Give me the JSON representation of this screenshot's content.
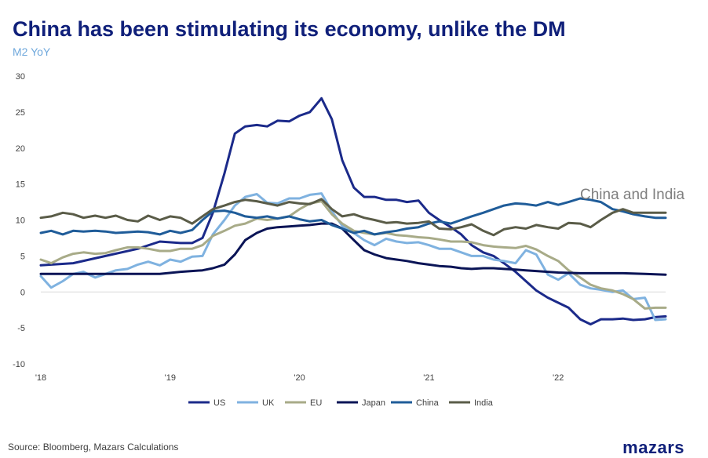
{
  "header": {
    "title": "China has been stimulating its economy, unlike the DM",
    "subtitle": "M2 YoY",
    "annotation": "China and India"
  },
  "footer": {
    "source": "Source: Bloomberg, Mazars Calculations",
    "logo": "mazars"
  },
  "chart_data": {
    "type": "line",
    "title": "China has been stimulating its economy, unlike the DM",
    "subtitle": "M2 YoY",
    "ylabel": "",
    "xlabel": "",
    "ylim": [
      -10,
      30
    ],
    "yticks": [
      30,
      25,
      20,
      15,
      10,
      5,
      0,
      -5,
      -10
    ],
    "xlim": [
      2018.0,
      2022.83
    ],
    "xticks": [
      {
        "value": 2018,
        "label": "'18"
      },
      {
        "value": 2019,
        "label": "'19"
      },
      {
        "value": 2020,
        "label": "'20"
      },
      {
        "value": 2021,
        "label": "'21"
      },
      {
        "value": 2022,
        "label": "'22"
      }
    ],
    "legend_position": "bottom",
    "annotations": [
      "China and India"
    ],
    "series": [
      {
        "name": "US",
        "color": "#1b2a8a",
        "x": [
          2018.0,
          2018.25,
          2018.5,
          2018.75,
          2018.92,
          2019.08,
          2019.17,
          2019.25,
          2019.33,
          2019.42,
          2019.5,
          2019.58,
          2019.67,
          2019.75,
          2019.83,
          2019.92,
          2020.0,
          2020.08,
          2020.17,
          2020.25,
          2020.33,
          2020.42,
          2020.5,
          2020.58,
          2020.67,
          2020.75,
          2020.83,
          2020.92,
          2021.0,
          2021.08,
          2021.17,
          2021.25,
          2021.33,
          2021.42,
          2021.5,
          2021.58,
          2021.67,
          2021.75,
          2021.83,
          2021.92,
          2022.0,
          2022.08,
          2022.17,
          2022.25,
          2022.33,
          2022.42,
          2022.5,
          2022.58,
          2022.67,
          2022.75,
          2022.83
        ],
        "y": [
          3.7,
          4.0,
          5.0,
          6.0,
          7.0,
          6.8,
          6.8,
          7.5,
          11.0,
          16.5,
          22.0,
          23.0,
          23.2,
          23.0,
          23.8,
          23.7,
          24.5,
          25.0,
          26.9,
          24.0,
          18.3,
          14.5,
          13.2,
          13.2,
          12.8,
          12.8,
          12.5,
          12.7,
          11.0,
          10.0,
          9.0,
          8.0,
          6.5,
          5.5,
          5.0,
          4.0,
          2.8,
          1.5,
          0.2,
          -0.8,
          -1.5,
          -2.2,
          -3.8,
          -4.5,
          -3.8,
          -3.8,
          -3.7,
          -3.9,
          -3.8,
          -3.5,
          -3.4
        ]
      },
      {
        "name": "UK",
        "color": "#7fb2e0",
        "x": [
          2018.0,
          2018.08,
          2018.17,
          2018.25,
          2018.33,
          2018.42,
          2018.5,
          2018.58,
          2018.67,
          2018.75,
          2018.83,
          2018.92,
          2019.0,
          2019.08,
          2019.17,
          2019.25,
          2019.33,
          2019.42,
          2019.5,
          2019.58,
          2019.67,
          2019.75,
          2019.83,
          2019.92,
          2020.0,
          2020.08,
          2020.17,
          2020.25,
          2020.33,
          2020.42,
          2020.5,
          2020.58,
          2020.67,
          2020.75,
          2020.83,
          2020.92,
          2021.0,
          2021.08,
          2021.17,
          2021.25,
          2021.33,
          2021.42,
          2021.5,
          2021.58,
          2021.67,
          2021.75,
          2021.83,
          2021.92,
          2022.0,
          2022.08,
          2022.17,
          2022.25,
          2022.33,
          2022.42,
          2022.5,
          2022.58,
          2022.67,
          2022.75,
          2022.83
        ],
        "y": [
          2.2,
          0.6,
          1.5,
          2.5,
          2.8,
          2.0,
          2.5,
          3.0,
          3.2,
          3.8,
          4.2,
          3.7,
          4.5,
          4.2,
          4.9,
          5.0,
          8.0,
          10.0,
          12.0,
          13.2,
          13.6,
          12.4,
          12.3,
          13.0,
          13.0,
          13.5,
          13.7,
          11.2,
          9.2,
          8.2,
          7.2,
          6.5,
          7.4,
          7.0,
          6.8,
          6.9,
          6.5,
          6.0,
          6.0,
          5.5,
          5.0,
          5.0,
          4.5,
          4.3,
          4.0,
          5.8,
          5.2,
          2.4,
          1.7,
          2.6,
          1.0,
          0.5,
          0.3,
          0.0,
          0.2,
          -1.0,
          -0.8,
          -3.9,
          -3.8
        ]
      },
      {
        "name": "EU",
        "color": "#a8ab88",
        "x": [
          2018.0,
          2018.08,
          2018.17,
          2018.25,
          2018.33,
          2018.42,
          2018.5,
          2018.58,
          2018.67,
          2018.75,
          2018.83,
          2018.92,
          2019.0,
          2019.08,
          2019.17,
          2019.25,
          2019.33,
          2019.42,
          2019.5,
          2019.58,
          2019.67,
          2019.75,
          2019.83,
          2019.92,
          2020.0,
          2020.08,
          2020.17,
          2020.25,
          2020.33,
          2020.42,
          2020.5,
          2020.58,
          2020.67,
          2020.75,
          2020.83,
          2020.92,
          2021.0,
          2021.08,
          2021.17,
          2021.25,
          2021.33,
          2021.42,
          2021.5,
          2021.58,
          2021.67,
          2021.75,
          2021.83,
          2021.92,
          2022.0,
          2022.08,
          2022.17,
          2022.25,
          2022.33,
          2022.42,
          2022.5,
          2022.58,
          2022.67,
          2022.75,
          2022.83
        ],
        "y": [
          4.5,
          4.0,
          4.8,
          5.3,
          5.5,
          5.3,
          5.4,
          5.8,
          6.2,
          6.2,
          6.0,
          5.7,
          5.7,
          6.0,
          6.0,
          6.5,
          7.8,
          8.5,
          9.2,
          9.5,
          10.2,
          10.0,
          10.2,
          10.5,
          11.5,
          12.3,
          12.6,
          10.8,
          9.5,
          8.5,
          8.2,
          8.0,
          8.2,
          7.9,
          7.8,
          7.6,
          7.5,
          7.3,
          7.0,
          7.0,
          6.9,
          6.5,
          6.3,
          6.2,
          6.1,
          6.4,
          5.9,
          5.0,
          4.3,
          3.0,
          2.0,
          1.0,
          0.5,
          0.2,
          -0.3,
          -1.0,
          -2.3,
          -2.2,
          -2.2
        ]
      },
      {
        "name": "Japan",
        "color": "#0a1456",
        "x": [
          2018.0,
          2018.5,
          2018.75,
          2018.92,
          2019.08,
          2019.25,
          2019.33,
          2019.42,
          2019.5,
          2019.58,
          2019.67,
          2019.75,
          2019.83,
          2019.92,
          2020.0,
          2020.08,
          2020.17,
          2020.25,
          2020.33,
          2020.42,
          2020.5,
          2020.58,
          2020.67,
          2020.75,
          2020.83,
          2020.92,
          2021.0,
          2021.08,
          2021.17,
          2021.25,
          2021.33,
          2021.42,
          2021.5,
          2021.58,
          2021.67,
          2021.75,
          2021.83,
          2021.92,
          2022.0,
          2022.17,
          2022.33,
          2022.5,
          2022.67,
          2022.83
        ],
        "y": [
          2.5,
          2.5,
          2.5,
          2.5,
          2.8,
          3.0,
          3.3,
          3.8,
          5.2,
          7.2,
          8.2,
          8.8,
          9.0,
          9.1,
          9.2,
          9.3,
          9.5,
          9.5,
          8.8,
          7.2,
          5.8,
          5.2,
          4.7,
          4.5,
          4.3,
          4.0,
          3.8,
          3.6,
          3.5,
          3.3,
          3.2,
          3.3,
          3.3,
          3.2,
          3.1,
          3.0,
          2.9,
          2.8,
          2.7,
          2.6,
          2.6,
          2.6,
          2.5,
          2.4
        ]
      },
      {
        "name": "China",
        "color": "#1f5c99",
        "x": [
          2018.0,
          2018.08,
          2018.17,
          2018.25,
          2018.33,
          2018.42,
          2018.5,
          2018.58,
          2018.67,
          2018.75,
          2018.83,
          2018.92,
          2019.0,
          2019.08,
          2019.17,
          2019.25,
          2019.33,
          2019.42,
          2019.5,
          2019.58,
          2019.67,
          2019.75,
          2019.83,
          2019.92,
          2020.0,
          2020.08,
          2020.17,
          2020.25,
          2020.33,
          2020.42,
          2020.5,
          2020.58,
          2020.67,
          2020.75,
          2020.83,
          2020.92,
          2021.0,
          2021.08,
          2021.17,
          2021.25,
          2021.33,
          2021.42,
          2021.5,
          2021.58,
          2021.67,
          2021.75,
          2021.83,
          2021.92,
          2022.0,
          2022.08,
          2022.17,
          2022.25,
          2022.33,
          2022.42,
          2022.5,
          2022.58,
          2022.67,
          2022.75,
          2022.83
        ],
        "y": [
          8.2,
          8.5,
          8.0,
          8.5,
          8.4,
          8.5,
          8.4,
          8.2,
          8.3,
          8.4,
          8.3,
          8.0,
          8.5,
          8.2,
          8.6,
          10.0,
          11.2,
          11.3,
          11.0,
          10.5,
          10.3,
          10.5,
          10.2,
          10.5,
          10.1,
          9.8,
          10.0,
          9.3,
          8.8,
          8.2,
          8.5,
          8.0,
          8.3,
          8.5,
          8.8,
          9.0,
          9.5,
          9.8,
          9.5,
          10.0,
          10.5,
          11.0,
          11.5,
          12.0,
          12.3,
          12.2,
          12.0,
          12.5,
          12.1,
          12.5,
          13.0,
          12.8,
          12.5,
          11.5,
          11.2,
          10.8,
          10.5,
          10.3,
          10.3
        ]
      },
      {
        "name": "India",
        "color": "#5a5c48",
        "x": [
          2018.0,
          2018.08,
          2018.17,
          2018.25,
          2018.33,
          2018.42,
          2018.5,
          2018.58,
          2018.67,
          2018.75,
          2018.83,
          2018.92,
          2019.0,
          2019.08,
          2019.17,
          2019.25,
          2019.33,
          2019.42,
          2019.5,
          2019.58,
          2019.67,
          2019.75,
          2019.83,
          2019.92,
          2020.0,
          2020.08,
          2020.17,
          2020.25,
          2020.33,
          2020.42,
          2020.5,
          2020.58,
          2020.67,
          2020.75,
          2020.83,
          2020.92,
          2021.0,
          2021.08,
          2021.17,
          2021.25,
          2021.33,
          2021.42,
          2021.5,
          2021.58,
          2021.67,
          2021.75,
          2021.83,
          2021.92,
          2022.0,
          2022.08,
          2022.17,
          2022.25,
          2022.33,
          2022.42,
          2022.5,
          2022.58,
          2022.67,
          2022.75,
          2022.83
        ],
        "y": [
          10.3,
          10.5,
          11.0,
          10.8,
          10.3,
          10.6,
          10.3,
          10.6,
          10.0,
          9.8,
          10.6,
          10.0,
          10.5,
          10.3,
          9.5,
          10.5,
          11.5,
          12.0,
          12.5,
          12.8,
          12.6,
          12.3,
          12.0,
          12.5,
          12.3,
          12.2,
          12.9,
          11.5,
          10.5,
          10.8,
          10.3,
          10.0,
          9.6,
          9.7,
          9.5,
          9.6,
          9.8,
          8.8,
          8.7,
          9.0,
          9.4,
          8.5,
          7.9,
          8.7,
          9.0,
          8.8,
          9.3,
          9.0,
          8.8,
          9.6,
          9.5,
          9.0,
          10.0,
          11.0,
          11.5,
          11.0,
          11.0,
          11.0,
          11.0
        ]
      }
    ]
  }
}
